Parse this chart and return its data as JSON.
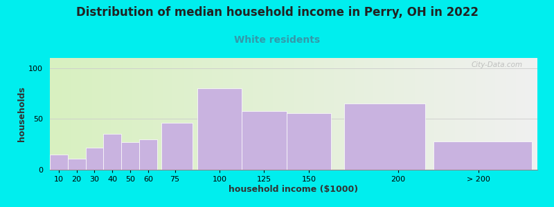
{
  "title": "Distribution of median household income in Perry, OH in 2022",
  "subtitle": "White residents",
  "xlabel": "household income ($1000)",
  "ylabel": "households",
  "categories": [
    "10",
    "20",
    "30",
    "40",
    "50",
    "60",
    "75",
    "100",
    "125",
    "150",
    "200",
    "> 200"
  ],
  "values": [
    15,
    11,
    22,
    35,
    27,
    30,
    46,
    80,
    58,
    56,
    65,
    28
  ],
  "bar_color": "#c9b3e0",
  "bar_edgecolor": "#ffffff",
  "ylim": [
    0,
    110
  ],
  "yticks": [
    0,
    50,
    100
  ],
  "background_color": "#00eeee",
  "plot_bg_left": "#d8f0c0",
  "plot_bg_right": "#f0f0f0",
  "title_fontsize": 12,
  "subtitle_fontsize": 10,
  "subtitle_color": "#3399aa",
  "axis_label_fontsize": 9,
  "tick_fontsize": 8,
  "watermark": "City-Data.com"
}
